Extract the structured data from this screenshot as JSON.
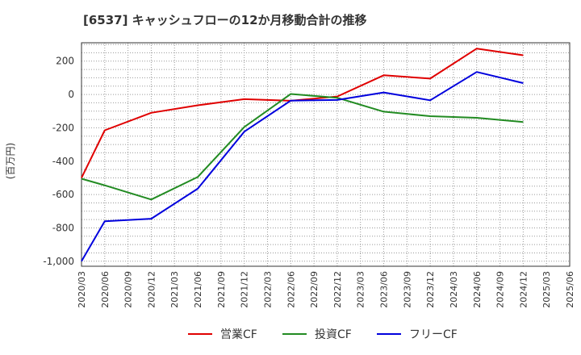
{
  "chart_data": {
    "type": "line",
    "title": "[6537]  キャッシュフローの12か月移動合計の推移",
    "ylabel": "(百万円)",
    "xlabel": "",
    "ylim": [
      -1030,
      310
    ],
    "yticks": [
      200,
      0,
      -200,
      -400,
      -600,
      -800,
      -1000
    ],
    "ytick_labels": [
      "200",
      "0",
      "-200",
      "-400",
      "-600",
      "-800",
      "-1,000"
    ],
    "categories": [
      "2020/03",
      "2020/06",
      "2020/09",
      "2020/12",
      "2021/03",
      "2021/06",
      "2021/09",
      "2021/12",
      "2022/03",
      "2022/06",
      "2022/09",
      "2022/12",
      "2023/03",
      "2023/06",
      "2023/09",
      "2023/12",
      "2024/03",
      "2024/06",
      "2024/09",
      "2024/12",
      "2025/03",
      "2025/06"
    ],
    "grid": true,
    "legend_position": "bottom",
    "series": [
      {
        "name": "営業CF",
        "color": "#e00000",
        "values": [
          -500,
          -215,
          null,
          -110,
          null,
          -65,
          null,
          -28,
          null,
          -38,
          null,
          -12,
          null,
          115,
          null,
          95,
          null,
          275,
          null,
          235,
          null,
          null
        ]
      },
      {
        "name": "投資CF",
        "color": "#228b22",
        "values": [
          -505,
          -545,
          null,
          -630,
          null,
          -495,
          null,
          -195,
          null,
          3,
          null,
          -20,
          null,
          -103,
          null,
          -130,
          null,
          -140,
          null,
          -165,
          null,
          null
        ]
      },
      {
        "name": "フリーCF",
        "color": "#0000dd",
        "values": [
          -1000,
          -760,
          null,
          -745,
          null,
          -565,
          null,
          -223,
          null,
          -37,
          null,
          -33,
          null,
          12,
          null,
          -35,
          null,
          135,
          null,
          68,
          null,
          null
        ]
      }
    ]
  }
}
